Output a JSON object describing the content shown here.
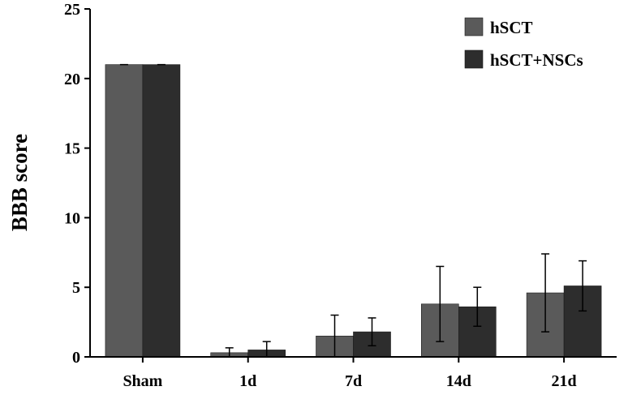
{
  "chart_data": {
    "type": "bar",
    "categories": [
      "Sham",
      "1d",
      "7d",
      "14d",
      "21d"
    ],
    "series": [
      {
        "name": "hSCT",
        "color": "#5a5a5a",
        "values": [
          21,
          0.3,
          1.5,
          3.8,
          4.6
        ],
        "errors": [
          0,
          0.35,
          1.5,
          2.7,
          2.8
        ]
      },
      {
        "name": "hSCT+NSCs",
        "color": "#2d2d2d",
        "values": [
          21,
          0.5,
          1.8,
          3.6,
          5.1
        ],
        "errors": [
          0,
          0.6,
          1.0,
          1.4,
          1.8
        ]
      }
    ],
    "title": "",
    "xlabel": "",
    "ylabel": "BBB score",
    "ylim": [
      0,
      25
    ],
    "yticks": [
      0,
      5,
      10,
      15,
      20,
      25
    ],
    "grid": false,
    "legend_position": "top-right"
  }
}
